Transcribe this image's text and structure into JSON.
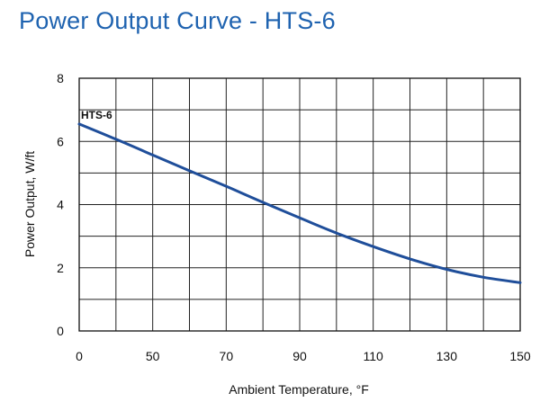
{
  "title": "Power Output Curve - HTS-6",
  "chart_data": {
    "type": "line",
    "title": "Power Output Curve - HTS-6",
    "xlabel": "Ambient Temperature, °F",
    "ylabel": "Power Output, W/ft",
    "x_tick_labels": [
      "0",
      "50",
      "70",
      "90",
      "110",
      "130",
      "150"
    ],
    "y_tick_labels": [
      "0",
      "2",
      "4",
      "6",
      "8"
    ],
    "xlim": [
      30,
      150
    ],
    "ylim": [
      0,
      8
    ],
    "grid": true,
    "series": [
      {
        "name": "HTS-6",
        "color": "#1f4e9a",
        "x": [
          30,
          40,
          50,
          60,
          70,
          80,
          90,
          100,
          110,
          120,
          130,
          140,
          150
        ],
        "y": [
          6.55,
          6.07,
          5.57,
          5.07,
          4.58,
          4.07,
          3.58,
          3.1,
          2.67,
          2.28,
          1.95,
          1.7,
          1.53
        ]
      }
    ]
  }
}
